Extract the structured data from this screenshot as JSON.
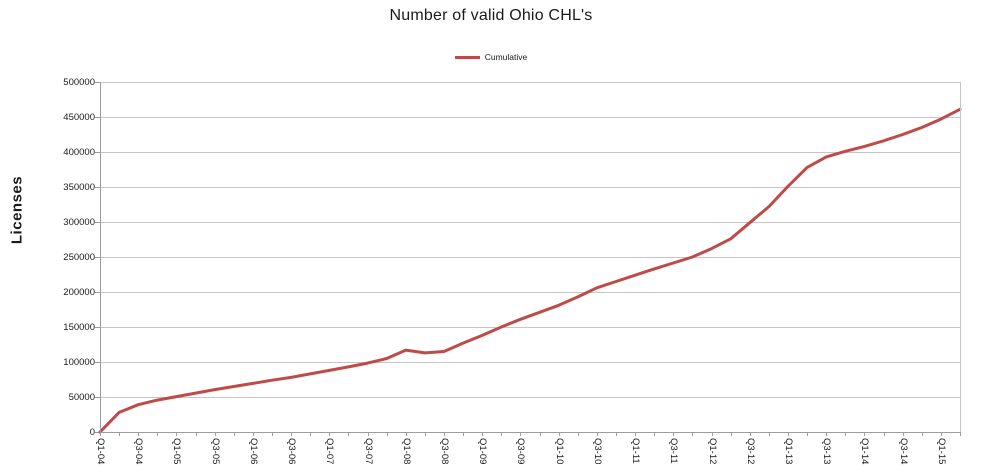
{
  "chart_data": {
    "type": "line",
    "title": "Number of valid Ohio CHL's",
    "ylabel": "Licenses",
    "xlabel": "",
    "legend_position": "top-center",
    "grid": true,
    "ylim": [
      0,
      500000
    ],
    "ytick_step": 50000,
    "x_label_every": 2,
    "categories": [
      "Q1-04",
      "Q2-04",
      "Q3-04",
      "Q4-04",
      "Q1-05",
      "Q2-05",
      "Q3-05",
      "Q4-05",
      "Q1-06",
      "Q2-06",
      "Q3-06",
      "Q4-06",
      "Q1-07",
      "Q2-07",
      "Q3-07",
      "Q4-07",
      "Q1-08",
      "Q2-08",
      "Q3-08",
      "Q4-08",
      "Q1-09",
      "Q2-09",
      "Q3-09",
      "Q4-09",
      "Q1-10",
      "Q2-10",
      "Q3-10",
      "Q4-10",
      "Q1-11",
      "Q2-11",
      "Q3-11",
      "Q4-11",
      "Q1-12",
      "Q2-12",
      "Q3-12",
      "Q4-12",
      "Q1-13",
      "Q2-13",
      "Q3-13",
      "Q4-13",
      "Q1-14",
      "Q2-14",
      "Q3-14",
      "Q4-14",
      "Q1-15",
      "Q2-15"
    ],
    "series": [
      {
        "name": "Cumulative",
        "color": "#BE4B48",
        "values": [
          0,
          28000,
          39000,
          45500,
          50500,
          55500,
          60500,
          65000,
          69500,
          74000,
          78000,
          83000,
          88000,
          93000,
          98500,
          105000,
          117000,
          113000,
          115000,
          127000,
          138000,
          150000,
          161000,
          171000,
          181000,
          193000,
          206000,
          215000,
          224000,
          233000,
          241500,
          250000,
          262000,
          276000,
          299000,
          322000,
          351000,
          378000,
          393000,
          401000,
          408000,
          416000,
          425000,
          435000,
          447000,
          461000
        ]
      }
    ]
  },
  "colors": {
    "line": "#BE4B48",
    "grid": "#C6C6C6",
    "axis": "#9C9C9C",
    "text": "#1a1a1a",
    "background": "#FFFFFF"
  }
}
